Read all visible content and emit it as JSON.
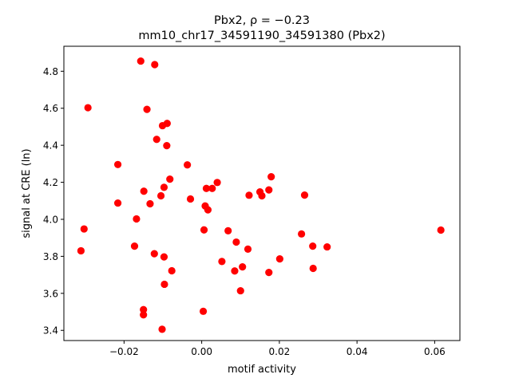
{
  "chart_data": {
    "type": "scatter",
    "title_line1": "Pbx2, ρ = −0.23",
    "title_line2": "mm10_chr17_34591190_34591380 (Pbx2)",
    "xlabel": "motif activity",
    "ylabel": "signal at CRE (ln)",
    "xlim": [
      -0.0355,
      0.0665
    ],
    "ylim": [
      3.345,
      4.935
    ],
    "xticks": [
      -0.02,
      0.0,
      0.02,
      0.04,
      0.06
    ],
    "xtick_labels": [
      "−0.02",
      "0.00",
      "0.02",
      "0.04",
      "0.06"
    ],
    "yticks": [
      3.4,
      3.6,
      3.8,
      4.0,
      4.2,
      4.4,
      4.6,
      4.8
    ],
    "ytick_labels": [
      "3.4",
      "3.6",
      "3.8",
      "4.0",
      "4.2",
      "4.4",
      "4.6",
      "4.8"
    ],
    "marker_color": "#ff0000",
    "grid": false,
    "points": [
      {
        "x": -0.0157,
        "y": 4.855
      },
      {
        "x": -0.0121,
        "y": 4.836
      },
      {
        "x": -0.0293,
        "y": 4.603
      },
      {
        "x": -0.0141,
        "y": 4.594
      },
      {
        "x": -0.0089,
        "y": 4.518
      },
      {
        "x": -0.0101,
        "y": 4.506
      },
      {
        "x": -0.0116,
        "y": 4.432
      },
      {
        "x": -0.009,
        "y": 4.398
      },
      {
        "x": -0.0216,
        "y": 4.296
      },
      {
        "x": -0.0037,
        "y": 4.294
      },
      {
        "x": 0.0179,
        "y": 4.23
      },
      {
        "x": -0.0082,
        "y": 4.217
      },
      {
        "x": 0.004,
        "y": 4.199
      },
      {
        "x": -0.0097,
        "y": 4.173
      },
      {
        "x": 0.0012,
        "y": 4.167
      },
      {
        "x": 0.0027,
        "y": 4.167
      },
      {
        "x": 0.0173,
        "y": 4.159
      },
      {
        "x": -0.0149,
        "y": 4.152
      },
      {
        "x": 0.015,
        "y": 4.148
      },
      {
        "x": 0.0122,
        "y": 4.13
      },
      {
        "x": -0.0105,
        "y": 4.127
      },
      {
        "x": 0.0155,
        "y": 4.127
      },
      {
        "x": 0.0265,
        "y": 4.131
      },
      {
        "x": -0.0029,
        "y": 4.11
      },
      {
        "x": -0.0216,
        "y": 4.088
      },
      {
        "x": -0.0133,
        "y": 4.084
      },
      {
        "x": 0.0009,
        "y": 4.072
      },
      {
        "x": 0.0016,
        "y": 4.051
      },
      {
        "x": -0.0168,
        "y": 4.002
      },
      {
        "x": -0.0303,
        "y": 3.948
      },
      {
        "x": 0.0006,
        "y": 3.943
      },
      {
        "x": 0.0068,
        "y": 3.938
      },
      {
        "x": 0.0616,
        "y": 3.942
      },
      {
        "x": 0.0257,
        "y": 3.921
      },
      {
        "x": 0.0089,
        "y": 3.877
      },
      {
        "x": -0.0173,
        "y": 3.855
      },
      {
        "x": 0.0286,
        "y": 3.855
      },
      {
        "x": 0.0323,
        "y": 3.851
      },
      {
        "x": 0.0119,
        "y": 3.839
      },
      {
        "x": -0.0311,
        "y": 3.83
      },
      {
        "x": -0.0122,
        "y": 3.814
      },
      {
        "x": -0.0097,
        "y": 3.797
      },
      {
        "x": 0.0201,
        "y": 3.786
      },
      {
        "x": 0.0052,
        "y": 3.772
      },
      {
        "x": 0.0105,
        "y": 3.743
      },
      {
        "x": 0.0287,
        "y": 3.735
      },
      {
        "x": -0.0077,
        "y": 3.722
      },
      {
        "x": 0.0085,
        "y": 3.721
      },
      {
        "x": 0.0173,
        "y": 3.713
      },
      {
        "x": -0.0096,
        "y": 3.649
      },
      {
        "x": 0.01,
        "y": 3.614
      },
      {
        "x": -0.015,
        "y": 3.512
      },
      {
        "x": 0.0004,
        "y": 3.503
      },
      {
        "x": -0.015,
        "y": 3.484
      },
      {
        "x": -0.0102,
        "y": 3.406
      }
    ]
  }
}
